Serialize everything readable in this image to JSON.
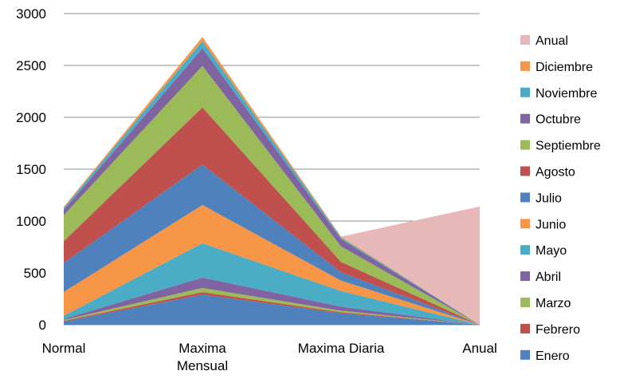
{
  "chart_data": {
    "type": "area",
    "stacked": true,
    "categories": [
      "Normal",
      "Maxima Mensual",
      "Maxima Diaria",
      "Anual"
    ],
    "category_lines": [
      [
        "Normal"
      ],
      [
        "Maxima",
        "Mensual"
      ],
      [
        "Maxima Diaria"
      ],
      [
        "Anual"
      ]
    ],
    "ylim": [
      0,
      3000
    ],
    "yticks": [
      0,
      500,
      1000,
      1500,
      2000,
      2500,
      3000
    ],
    "grid": true,
    "legend_position": "right",
    "series": [
      {
        "name": "Enero",
        "color": "#4F81BD",
        "values": [
          30,
          290,
          110,
          0
        ]
      },
      {
        "name": "Febrero",
        "color": "#C0504D",
        "values": [
          8,
          25,
          10,
          0
        ]
      },
      {
        "name": "Marzo",
        "color": "#9BBB59",
        "values": [
          8,
          40,
          15,
          0
        ]
      },
      {
        "name": "Abril",
        "color": "#8064A2",
        "values": [
          10,
          100,
          40,
          0
        ]
      },
      {
        "name": "Mayo",
        "color": "#4BACC6",
        "values": [
          30,
          330,
          150,
          0
        ]
      },
      {
        "name": "Junio",
        "color": "#F79646",
        "values": [
          230,
          370,
          100,
          0
        ]
      },
      {
        "name": "Julio",
        "color": "#4F81BD",
        "values": [
          280,
          390,
          80,
          0
        ]
      },
      {
        "name": "Agosto",
        "color": "#C0504D",
        "values": [
          210,
          550,
          100,
          0
        ]
      },
      {
        "name": "Septiembre",
        "color": "#9BBB59",
        "values": [
          250,
          400,
          150,
          0
        ]
      },
      {
        "name": "Octubre",
        "color": "#8064A2",
        "values": [
          50,
          170,
          70,
          0
        ]
      },
      {
        "name": "Noviembre",
        "color": "#4BACC6",
        "values": [
          20,
          70,
          15,
          0
        ]
      },
      {
        "name": "Diciembre",
        "color": "#F79646",
        "values": [
          10,
          40,
          10,
          0
        ]
      },
      {
        "name": "Anual",
        "color": "#E6B9B8",
        "values": [
          0,
          0,
          0,
          1140
        ]
      }
    ]
  }
}
